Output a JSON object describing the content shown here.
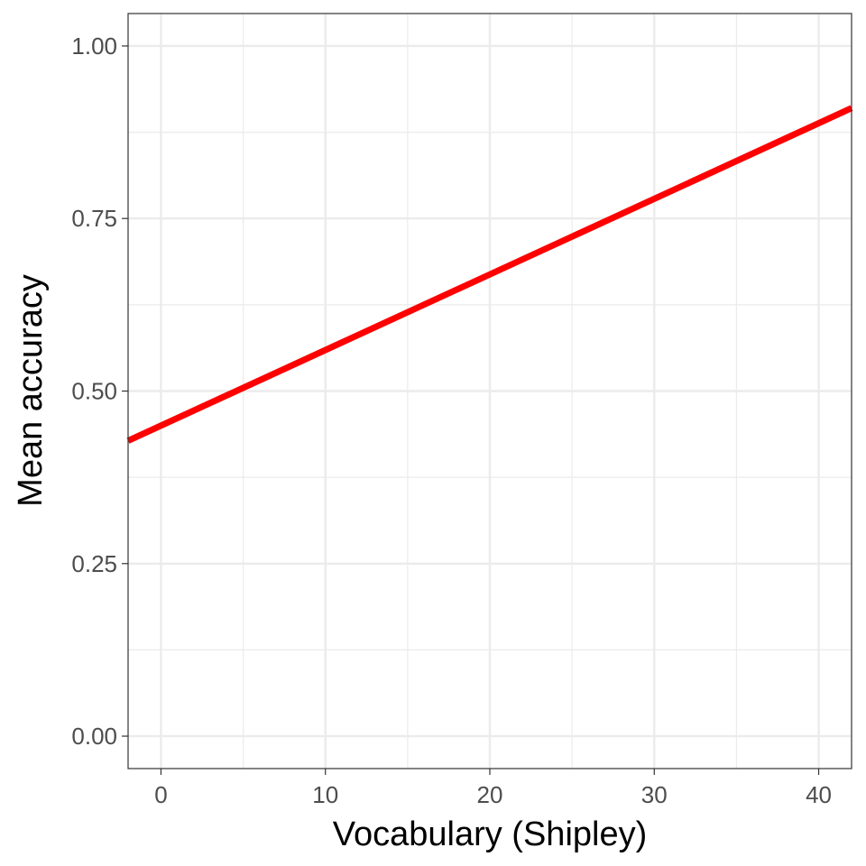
{
  "chart_data": {
    "type": "line",
    "title": "",
    "xlabel": "Vocabulary (Shipley)",
    "ylabel": "Mean accuracy",
    "xlim": [
      -2,
      42
    ],
    "ylim": [
      -0.047,
      1.047
    ],
    "x_ticks": [
      0,
      10,
      20,
      30,
      40
    ],
    "x_tick_labels": [
      "0",
      "10",
      "20",
      "30",
      "40"
    ],
    "y_ticks": [
      0.0,
      0.25,
      0.5,
      0.75,
      1.0
    ],
    "y_tick_labels": [
      "0.00",
      "0.25",
      "0.50",
      "0.75",
      "1.00"
    ],
    "grid": true,
    "series": [
      {
        "x": [
          -2,
          42
        ],
        "y": [
          0.428,
          0.91
        ],
        "color": "#ff0000"
      }
    ]
  }
}
